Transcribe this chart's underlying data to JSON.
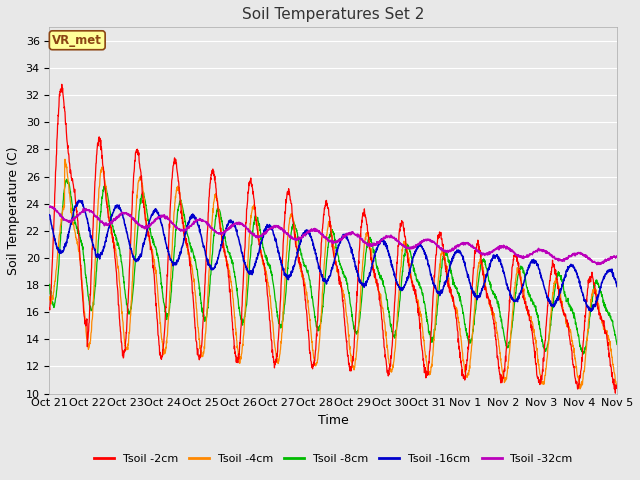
{
  "title": "Soil Temperatures Set 2",
  "xlabel": "Time",
  "ylabel": "Soil Temperature (C)",
  "ylim": [
    10,
    37
  ],
  "yticks": [
    10,
    12,
    14,
    16,
    18,
    20,
    22,
    24,
    26,
    28,
    30,
    32,
    34,
    36
  ],
  "xtick_labels": [
    "Oct 21",
    "Oct 22",
    "Oct 23",
    "Oct 24",
    "Oct 25",
    "Oct 26",
    "Oct 27",
    "Oct 28",
    "Oct 29",
    "Oct 30",
    "Oct 31",
    "Nov 1",
    "Nov 2",
    "Nov 3",
    "Nov 4",
    "Nov 5"
  ],
  "legend_labels": [
    "Tsoil -2cm",
    "Tsoil -4cm",
    "Tsoil -8cm",
    "Tsoil -16cm",
    "Tsoil -32cm"
  ],
  "legend_colors": [
    "#ff0000",
    "#ff8800",
    "#00bb00",
    "#0000cc",
    "#bb00bb"
  ],
  "annotation_text": "VR_met",
  "annotation_color": "#8B4513",
  "annotation_bg": "#ffff99",
  "annotation_border": "#8B4513",
  "bg_color": "#e8e8e8",
  "grid_color": "#ffffff",
  "title_fontsize": 11,
  "axis_label_fontsize": 9,
  "tick_fontsize": 8,
  "legend_fontsize": 8
}
